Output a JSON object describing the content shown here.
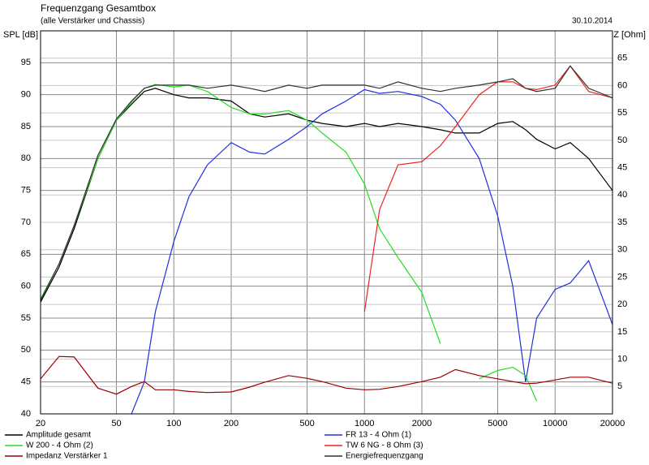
{
  "chart_data": {
    "type": "line",
    "title": "Frequenzgang Gesamtbox",
    "subtitle": "(alle Verstärker und Chassis)",
    "date": "30.10.2014",
    "ylabel": "SPL [dB]",
    "y2label": "Z [Ohm]",
    "xscale": "log",
    "grid": true,
    "xlim": [
      20,
      20000
    ],
    "xticks": [
      20,
      50,
      100,
      200,
      500,
      1000,
      2000,
      5000,
      10000,
      20000
    ],
    "ylim": [
      40,
      100
    ],
    "yticks": [
      40,
      45,
      50,
      55,
      60,
      65,
      70,
      75,
      80,
      85,
      90,
      95
    ],
    "y2lim": [
      0,
      70
    ],
    "y2ticks": [
      5,
      10,
      15,
      20,
      25,
      30,
      35,
      40,
      45,
      50,
      55,
      60,
      65
    ],
    "x": [
      20,
      25,
      30,
      40,
      50,
      60,
      70,
      80,
      100,
      120,
      150,
      200,
      250,
      300,
      400,
      500,
      600,
      800,
      1000,
      1200,
      1500,
      2000,
      2500,
      3000,
      4000,
      5000,
      6000,
      7000,
      8000,
      10000,
      12000,
      15000,
      20000
    ],
    "series": [
      {
        "name": "Amplitude gesamt",
        "color": "#000000",
        "values": [
          57.5,
          63,
          69,
          80,
          86,
          88.5,
          90.5,
          91,
          90,
          89.5,
          89.5,
          89,
          87,
          86.5,
          87,
          86,
          85.5,
          85,
          85.5,
          85,
          85.5,
          85,
          84.5,
          84,
          84,
          85.5,
          85.8,
          84.5,
          83,
          81.5,
          82.5,
          80,
          75
        ]
      },
      {
        "name": "FR 13 - 4 Ohm (1)",
        "color": "#2030e0",
        "values": [
          null,
          null,
          null,
          null,
          null,
          40,
          45,
          56,
          67,
          74,
          79,
          82.5,
          81,
          80.7,
          83,
          85,
          87,
          89,
          90.8,
          90.2,
          90.5,
          89.7,
          88.5,
          86,
          80,
          71,
          60,
          45,
          55,
          59.5,
          60.5,
          64,
          54
        ]
      },
      {
        "name": "W 200 - 4 Ohm (2)",
        "color": "#22dd22",
        "values": [
          58,
          63.5,
          69.5,
          80,
          86,
          88.8,
          91,
          91.6,
          91.2,
          91.5,
          90.5,
          88,
          87,
          87,
          87.5,
          86,
          84,
          81,
          76,
          69,
          64.5,
          59,
          51,
          null,
          45.5,
          46.8,
          47.3,
          46,
          42,
          null,
          null,
          null,
          null
        ]
      },
      {
        "name": "TW 6 NG - 8 Ohm (3)",
        "color": "#ee2222",
        "values": [
          null,
          null,
          null,
          null,
          null,
          null,
          null,
          null,
          null,
          null,
          null,
          null,
          null,
          null,
          null,
          null,
          null,
          null,
          56,
          72,
          79,
          79.5,
          82,
          85,
          90,
          92,
          92,
          91,
          90.8,
          91.5,
          94.5,
          90.5,
          89.5
        ]
      },
      {
        "name": "Impedanz Verstärker 1",
        "color": "#990000",
        "axis": "y2",
        "values": [
          6.4,
          10.5,
          10.4,
          4.7,
          3.6,
          5,
          5.9,
          4.4,
          4.4,
          4.1,
          3.9,
          4,
          4.9,
          5.8,
          7,
          6.5,
          5.9,
          4.7,
          4.4,
          4.5,
          5,
          5.9,
          6.7,
          8.1,
          7,
          6.4,
          5.9,
          5.5,
          5.6,
          6.2,
          6.7,
          6.7,
          5.6
        ]
      },
      {
        "name": "Energiefrequenzgang",
        "color": "#333333",
        "values": [
          57.8,
          63.5,
          69.5,
          80.5,
          86.2,
          89,
          91,
          91.5,
          91.5,
          91.5,
          91,
          91.5,
          91,
          90.5,
          91.5,
          91,
          91.5,
          91.5,
          91.5,
          91,
          92,
          91,
          90.5,
          91,
          91.5,
          92,
          92.5,
          91,
          90.5,
          91,
          94.5,
          91,
          89.5
        ]
      }
    ]
  }
}
